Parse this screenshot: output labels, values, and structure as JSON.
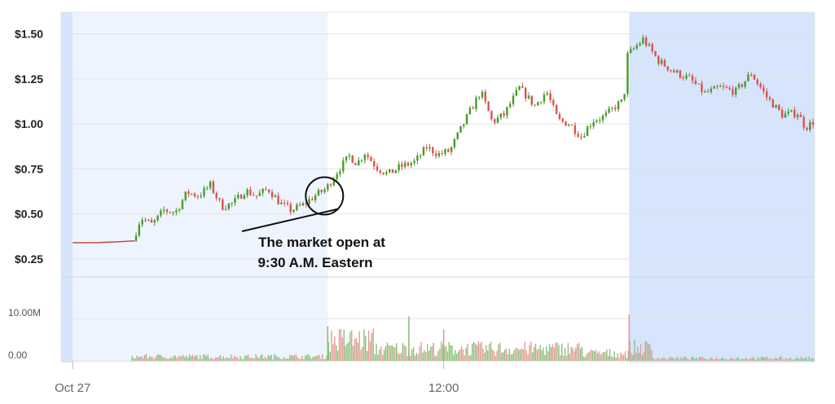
{
  "chart_data": {
    "type": "candlestick",
    "y_ticks": [
      "$0.25",
      "$0.50",
      "$0.75",
      "$1.00",
      "$1.25",
      "$1.50"
    ],
    "y_tick_values": [
      0.25,
      0.5,
      0.75,
      1.0,
      1.25,
      1.5
    ],
    "ylim": [
      0.15,
      1.62
    ],
    "volume_ticks": [
      "0.00",
      "10.00M"
    ],
    "volume_tick_values": [
      0,
      10000000
    ],
    "volume_lim": [
      0,
      16000000
    ],
    "x_ticks": [
      "Oct 27",
      "12:00"
    ],
    "x_tick_times": [
      "04:00",
      "12:00"
    ],
    "xlim": [
      "03:45",
      "20:00"
    ],
    "sessions": [
      {
        "kind": "closed",
        "from": "03:45",
        "to": "04:00",
        "color": "#d6e4fc"
      },
      {
        "kind": "pre-market",
        "from": "04:00",
        "to": "09:30",
        "color": "#eef4fe"
      },
      {
        "kind": "after-hours",
        "from": "16:00",
        "to": "20:00",
        "color": "#d6e4fc"
      }
    ],
    "up_color": "#4a9a2a",
    "down_color": "#d9534f",
    "flat_color": "#c0392b",
    "price_path": [
      [
        "04:00",
        0.34
      ],
      [
        "04:30",
        0.34
      ],
      [
        "05:00",
        0.345
      ],
      [
        "05:20",
        0.35
      ],
      [
        "05:30",
        0.48
      ],
      [
        "05:45",
        0.44
      ],
      [
        "06:00",
        0.52
      ],
      [
        "06:15",
        0.51
      ],
      [
        "06:30",
        0.62
      ],
      [
        "06:45",
        0.6
      ],
      [
        "07:00",
        0.66
      ],
      [
        "07:15",
        0.54
      ],
      [
        "07:30",
        0.56
      ],
      [
        "07:45",
        0.63
      ],
      [
        "08:00",
        0.6
      ],
      [
        "08:15",
        0.64
      ],
      [
        "08:30",
        0.56
      ],
      [
        "08:45",
        0.52
      ],
      [
        "09:00",
        0.55
      ],
      [
        "09:15",
        0.6
      ],
      [
        "09:30",
        0.64
      ],
      [
        "09:45",
        0.74
      ],
      [
        "10:00",
        0.82
      ],
      [
        "10:10",
        0.78
      ],
      [
        "10:20",
        0.84
      ],
      [
        "10:35",
        0.76
      ],
      [
        "10:50",
        0.72
      ],
      [
        "11:05",
        0.76
      ],
      [
        "11:25",
        0.79
      ],
      [
        "11:40",
        0.87
      ],
      [
        "11:55",
        0.83
      ],
      [
        "12:10",
        0.85
      ],
      [
        "12:30",
        1.02
      ],
      [
        "12:50",
        1.18
      ],
      [
        "13:05",
        1.01
      ],
      [
        "13:20",
        1.05
      ],
      [
        "13:40",
        1.2
      ],
      [
        "14:00",
        1.1
      ],
      [
        "14:15",
        1.18
      ],
      [
        "14:30",
        1.02
      ],
      [
        "14:45",
        1.0
      ],
      [
        "15:00",
        0.93
      ],
      [
        "15:15",
        1.02
      ],
      [
        "15:30",
        1.04
      ],
      [
        "15:45",
        1.1
      ],
      [
        "15:55",
        1.13
      ],
      [
        "16:00",
        1.38
      ],
      [
        "16:20",
        1.47
      ],
      [
        "16:40",
        1.35
      ],
      [
        "17:00",
        1.29
      ],
      [
        "17:20",
        1.25
      ],
      [
        "17:40",
        1.17
      ],
      [
        "18:00",
        1.2
      ],
      [
        "18:20",
        1.18
      ],
      [
        "18:40",
        1.28
      ],
      [
        "19:00",
        1.15
      ],
      [
        "19:20",
        1.05
      ],
      [
        "19:40",
        1.06
      ],
      [
        "19:50",
        0.98
      ],
      [
        "20:00",
        1.01
      ]
    ],
    "volume_levels": [
      {
        "from": "04:00",
        "to": "05:15",
        "level": 0
      },
      {
        "from": "05:15",
        "to": "09:30",
        "level": 1100000
      },
      {
        "from": "09:30",
        "to": "10:30",
        "level": 5500000
      },
      {
        "from": "10:30",
        "to": "15:00",
        "level": 3200000
      },
      {
        "from": "15:00",
        "to": "16:00",
        "level": 2000000
      },
      {
        "from": "16:00",
        "to": "16:30",
        "level": 3400000
      },
      {
        "from": "16:30",
        "to": "20:00",
        "level": 700000
      }
    ],
    "volume_spikes": [
      {
        "t": "11:15",
        "v": 10500000
      },
      {
        "t": "16:00",
        "v": 11000000
      },
      {
        "t": "09:30",
        "v": 8200000
      },
      {
        "t": "12:00",
        "v": 7400000
      }
    ],
    "annotation": {
      "line1": "The market open at",
      "line2": "9:30 A.M. Eastern",
      "circle_at": "09:30",
      "circle_price": 0.6
    }
  }
}
